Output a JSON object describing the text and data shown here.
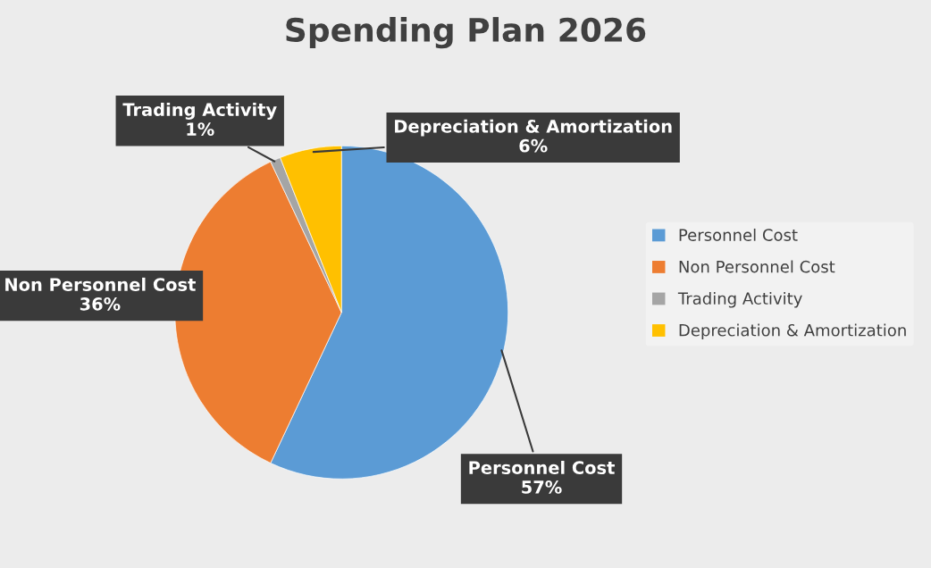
{
  "chart_data": {
    "type": "pie",
    "title": "Spending Plan 2026",
    "categories": [
      "Personnel Cost",
      "Non Personnel Cost",
      "Trading Activity",
      "Depreciation & Amortization"
    ],
    "values": [
      57,
      36,
      1,
      6
    ],
    "value_labels": [
      "57%",
      "36%",
      "1%",
      "6%"
    ],
    "colors": [
      "#5b9bd5",
      "#ed7d31",
      "#a5a5a5",
      "#ffc000"
    ],
    "legend": "right"
  }
}
